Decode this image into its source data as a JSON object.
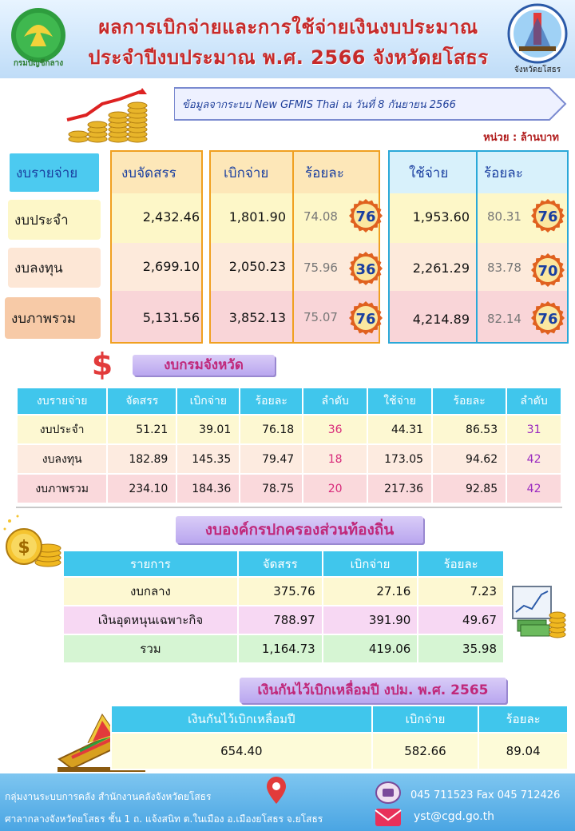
{
  "header": {
    "title_line1": "ผลการเบิกจ่ายและการใช้จ่ายเงินงบประมาณ",
    "title_line2": "ประจำปีงบประมาณ พ.ศ. 2566 จังหวัดยโสธร",
    "logo_left_text": "กรมบัญชีกลาง",
    "logo_right_text": "จังหวัดยโสธร"
  },
  "source": {
    "text": "ข้อมูลจากระบบ New GFMIS Thai ณ วันที่ 8 กันยายน 2566",
    "unit": "หน่วย : ล้านบาท"
  },
  "summary": {
    "headers": {
      "type": "งบรายจ่าย",
      "allocated": "งบจัดสรร",
      "disbursed": "เบิกจ่าย",
      "disbursed_pct": "ร้อยละ",
      "spent": "ใช้จ่าย",
      "spent_pct": "ร้อยละ"
    },
    "rows": [
      {
        "label": "งบประจำ",
        "allocated": "2,432.46",
        "disbursed": "1,801.90",
        "disbursed_pct": "74.08",
        "disbursed_rank": "76",
        "spent": "1,953.60",
        "spent_pct": "80.31",
        "spent_rank": "76"
      },
      {
        "label": "งบลงทุน",
        "allocated": "2,699.10",
        "disbursed": "2,050.23",
        "disbursed_pct": "75.96",
        "disbursed_rank": "36",
        "spent": "2,261.29",
        "spent_pct": "83.78",
        "spent_rank": "70"
      },
      {
        "label": "งบภาพรวม",
        "allocated": "5,131.56",
        "disbursed": "3,852.13",
        "disbursed_pct": "75.07",
        "disbursed_rank": "76",
        "spent": "4,214.89",
        "spent_pct": "82.14",
        "spent_rank": "76"
      }
    ]
  },
  "provincial": {
    "title": "งบกรมจังหวัด",
    "headers": [
      "งบรายจ่าย",
      "จัดสรร",
      "เบิกจ่าย",
      "ร้อยละ",
      "ลำดับ",
      "ใช้จ่าย",
      "ร้อยละ",
      "ลำดับ"
    ],
    "rows": [
      [
        "งบประจำ",
        "51.21",
        "39.01",
        "76.18",
        "36",
        "44.31",
        "86.53",
        "31"
      ],
      [
        "งบลงทุน",
        "182.89",
        "145.35",
        "79.47",
        "18",
        "173.05",
        "94.62",
        "42"
      ],
      [
        "งบภาพรวม",
        "234.10",
        "184.36",
        "78.75",
        "20",
        "217.36",
        "92.85",
        "42"
      ]
    ]
  },
  "local_gov": {
    "title": "งบองค์กรปกครองส่วนท้องถิ่น",
    "headers": [
      "รายการ",
      "จัดสรร",
      "เบิกจ่าย",
      "ร้อยละ"
    ],
    "rows": [
      [
        "งบกลาง",
        "375.76",
        "27.16",
        "7.23"
      ],
      [
        "เงินอุดหนุนเฉพาะกิจ",
        "788.97",
        "391.90",
        "49.67"
      ],
      [
        "รวม",
        "1,164.73",
        "419.06",
        "35.98"
      ]
    ]
  },
  "carry_over": {
    "title": "เงินกันไว้เบิกเหลื่อมปี งปม. พ.ศ. 2565",
    "headers": [
      "เงินกันไว้เบิกเหลื่อมปี",
      "เบิกจ่าย",
      "ร้อยละ"
    ],
    "row": [
      "654.40",
      "582.66",
      "89.04"
    ]
  },
  "footer": {
    "line1": "กลุ่มงานระบบการคลัง  สำนักงานคลังจังหวัดยโสธร",
    "line2": "ศาลากลางจังหวัดยโสธร  ชั้น 1 ถ. แจ้งสนิท  ต.ในเมือง อ.เมืองยโสธร จ.ยโสธร",
    "phone": "045 711523  Fax 045 712426",
    "email": "yst@cgd.go.th"
  },
  "colors": {
    "title_red": "#c62a2a",
    "table_header": "#40c6ec",
    "badge_fill": "#fbe7a0",
    "badge_ring": "#e0611f"
  }
}
